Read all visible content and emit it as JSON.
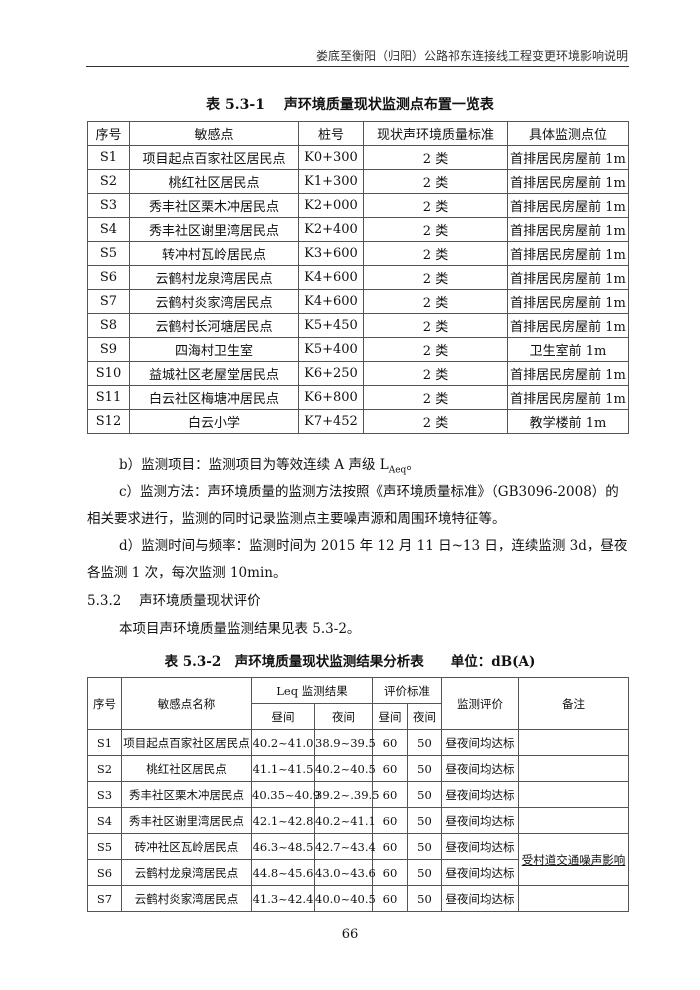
{
  "header": "娄底至衡阳（归阳）公路祁东连接线工程变更环境影响说明",
  "table1": {
    "title": "表 5.3-1　 声环境质量现状监测点布置一览表",
    "columns": [
      "序号",
      "敏感点",
      "桩号",
      "现状声环境质量标准",
      "具体监测点位"
    ],
    "rows": [
      [
        "S1",
        "项目起点百家社区居民点",
        "K0+300",
        "2 类",
        "首排居民房屋前 1m"
      ],
      [
        "S2",
        "桃红社区居民点",
        "K1+300",
        "2 类",
        "首排居民房屋前 1m"
      ],
      [
        "S3",
        "秀丰社区栗木冲居民点",
        "K2+000",
        "2 类",
        "首排居民房屋前 1m"
      ],
      [
        "S4",
        "秀丰社区谢里湾居民点",
        "K2+400",
        "2 类",
        "首排居民房屋前 1m"
      ],
      [
        "S5",
        "转冲村瓦岭居民点",
        "K3+600",
        "2 类",
        "首排居民房屋前 1m"
      ],
      [
        "S6",
        "云鹤村龙泉湾居民点",
        "K4+600",
        "2 类",
        "首排居民房屋前 1m"
      ],
      [
        "S7",
        "云鹤村炎家湾居民点",
        "K4+600",
        "2 类",
        "首排居民房屋前 1m"
      ],
      [
        "S8",
        "云鹤村长河塘居民点",
        "K5+450",
        "2 类",
        "首排居民房屋前 1m"
      ],
      [
        "S9",
        "四海村卫生室",
        "K5+400",
        "2 类",
        "卫生室前 1m"
      ],
      [
        "S10",
        "益城社区老屋堂居民点",
        "K6+250",
        "2 类",
        "首排居民房屋前 1m"
      ],
      [
        "S11",
        "白云社区梅塘冲居民点",
        "K6+800",
        "2 类",
        "首排居民房屋前 1m"
      ],
      [
        "S12",
        "白云小学",
        "K7+452",
        "2 类",
        "教学楼前 1m"
      ]
    ]
  },
  "paragraphs": {
    "b_prefix": "b）监测项目：监测项目为等效连续 A 声级 L",
    "b_sub": "Aeq",
    "b_suffix": "。",
    "c": "c）监测方法：声环境质量的监测方法按照《声环境质量标准》（GB3096-2008）的相关要求进行，监测的同时记录监测点主要噪声源和周围环境特征等。",
    "d": "d）监测时间与频率：监测时间为 2015 年 12 月 11 日~13 日，连续监测 3d，昼夜各监测 1 次，每次监测 10min。",
    "section": "5.3.2　 声环境质量现状评价",
    "intro": "本项目声环境质量监测结果见表 5.3-2。"
  },
  "table2": {
    "title": "表 5.3-2　声环境质量现状监测结果分析表　　单位：dB(A)",
    "headers": {
      "no": "序号",
      "name": "敏感点名称",
      "leq": "Leq 监测结果",
      "std": "评价标准",
      "eval": "监测评价",
      "remark": "备注",
      "day": "昼间",
      "night": "夜间"
    },
    "rows": [
      [
        "S1",
        "项目起点百家社区居民点",
        "40.2~41.0",
        "38.9~39.5",
        "60",
        "50",
        "昼夜间均达标"
      ],
      [
        "S2",
        "桃红社区居民点",
        "41.1~41.5",
        "40.2~40.5",
        "60",
        "50",
        "昼夜间均达标"
      ],
      [
        "S3",
        "秀丰社区栗木冲居民点",
        "40.35~40.9",
        "39.2~.39.5",
        "60",
        "50",
        "昼夜间均达标"
      ],
      [
        "S4",
        "秀丰社区谢里湾居民点",
        "42.1~42.8",
        "40.2~41.1",
        "60",
        "50",
        "昼夜间均达标"
      ],
      [
        "S5",
        "砖冲社区瓦岭居民点",
        "46.3~48.5",
        "42.7~43.4",
        "60",
        "50",
        "昼夜间均达标"
      ],
      [
        "S6",
        "云鹤村龙泉湾居民点",
        "44.8~45.6",
        "43.0~43.6",
        "60",
        "50",
        "昼夜间均达标"
      ],
      [
        "S7",
        "云鹤村炎家湾居民点",
        "41.3~42.4",
        "40.0~40.5",
        "60",
        "50",
        "昼夜间均达标"
      ]
    ],
    "remark_s5_s6": "受村道交通噪声影响"
  },
  "page_number": "66"
}
